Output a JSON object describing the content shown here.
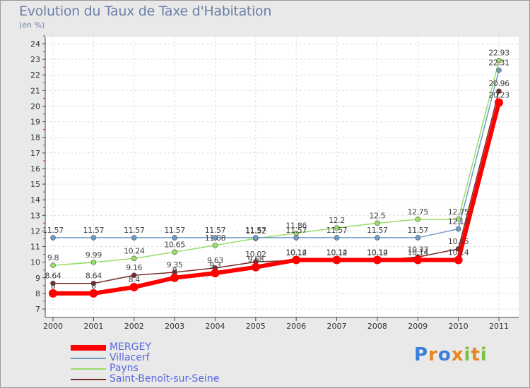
{
  "title": "Evolution du Taux de Taxe d'Habitation",
  "unit": "(en %)",
  "logo": {
    "letters": [
      "P",
      "r",
      "o",
      "x",
      "i",
      "t",
      "i"
    ],
    "colors": [
      "#3a7fd8",
      "#e8871e",
      "#3a7fd8",
      "#e8871e",
      "#7cc142",
      "#e8871e",
      "#7cc142"
    ]
  },
  "chart_data": {
    "type": "line",
    "title": "Evolution du Taux de Taxe d'Habitation",
    "ylabel": "(en %)",
    "x": [
      "2000",
      "2001",
      "2002",
      "2003",
      "2004",
      "2005",
      "2006",
      "2007",
      "2008",
      "2009",
      "2010",
      "2011"
    ],
    "ylim": [
      7,
      24
    ],
    "yticks": [
      "7",
      "8",
      "9",
      "10",
      "11",
      "12",
      "13",
      "14",
      "15",
      "16",
      "17",
      "18",
      "19",
      "20",
      "21",
      "22",
      "23",
      "24"
    ],
    "grid": true,
    "legend_position": "bottom-left",
    "series": [
      {
        "name": "MERGEY",
        "color": "#ff0000",
        "values": [
          8,
          8,
          8.4,
          9,
          9.3,
          9.68,
          10.14,
          10.14,
          10.14,
          10.14,
          10.14,
          20.23
        ],
        "labels": [
          "8",
          "8",
          "8.4",
          "9",
          "9.3",
          "9.68",
          "10.14",
          "10.14",
          "10.14",
          "10.14",
          "10.14",
          "20.23"
        ]
      },
      {
        "name": "Villacerf",
        "color": "#6e9cc8",
        "values": [
          11.57,
          11.57,
          11.57,
          11.57,
          11.57,
          11.57,
          11.57,
          11.57,
          11.57,
          11.57,
          12.13,
          22.31
        ],
        "labels": [
          "11.57",
          "11.57",
          "11.57",
          "11.57",
          "11.57",
          "11.57",
          "11.57",
          "11.57",
          "11.57",
          "11.57",
          "12.13",
          "22.31"
        ]
      },
      {
        "name": "Payns",
        "color": "#99dd66",
        "values": [
          9.8,
          9.99,
          10.24,
          10.65,
          11.08,
          11.52,
          11.86,
          12.2,
          12.5,
          12.75,
          12.75,
          22.93
        ],
        "labels": [
          "9.8",
          "9.99",
          "10.24",
          "10.65",
          "11.08",
          "11.52",
          "11.86",
          "12.2",
          "12.5",
          "12.75",
          "12.75",
          "22.93"
        ]
      },
      {
        "name": "Saint-Benoît-sur-Seine",
        "color": "#7a2a2a",
        "values": [
          8.64,
          8.64,
          9.16,
          9.35,
          9.63,
          10.02,
          10.12,
          10.12,
          10.12,
          10.33,
          10.85,
          20.96
        ],
        "labels": [
          "8.64",
          "8.64",
          "9.16",
          "9.35",
          "9.63",
          "10.02",
          "10.12",
          "10.12",
          "10.12",
          "10.33",
          "10.85",
          "20.96"
        ]
      }
    ]
  }
}
